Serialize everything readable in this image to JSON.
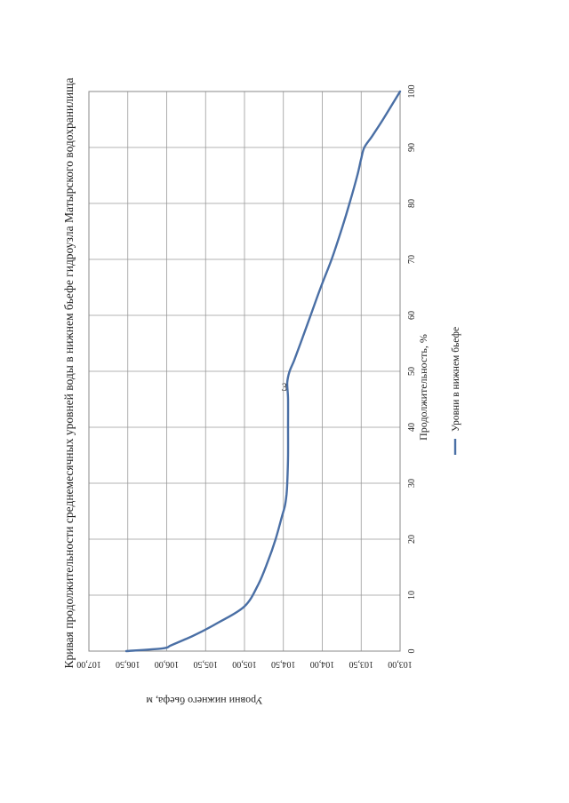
{
  "page_number": "3",
  "chart_data": {
    "type": "line",
    "title": "Кривая продолжительности среднемесячных уровней воды в нижнем бьефе гидроузла Матырского водохранилища",
    "xlabel": "Продолжительность, %",
    "ylabel": "Уровни нижнего бьефа, м",
    "xlim": [
      0,
      100
    ],
    "ylim": [
      103.0,
      107.0
    ],
    "x_ticks": [
      "0",
      "10",
      "20",
      "30",
      "40",
      "50",
      "60",
      "70",
      "80",
      "90",
      "100"
    ],
    "y_ticks": [
      "103,00",
      "103,50",
      "104,00",
      "104,50",
      "105,00",
      "105,50",
      "106,00",
      "106,50",
      "107,00"
    ],
    "grid": true,
    "legend_position": "bottom",
    "series": [
      {
        "name": "Уровни в нижнем бьефе",
        "color": "#4a6fa5",
        "x": [
          0,
          0.5,
          1,
          2,
          3,
          5,
          8,
          12,
          16,
          20,
          24,
          26,
          28,
          30,
          35,
          40,
          45,
          48,
          50,
          52,
          55,
          60,
          65,
          70,
          75,
          80,
          85,
          88,
          90,
          92,
          95,
          100
        ],
        "y": [
          106.52,
          106.05,
          105.95,
          105.78,
          105.62,
          105.35,
          105.0,
          104.82,
          104.7,
          104.6,
          104.52,
          104.48,
          104.46,
          104.45,
          104.44,
          104.44,
          104.44,
          104.45,
          104.42,
          104.36,
          104.28,
          104.15,
          104.02,
          103.88,
          103.76,
          103.65,
          103.55,
          103.5,
          103.46,
          103.36,
          103.22,
          103.0
        ]
      }
    ]
  }
}
